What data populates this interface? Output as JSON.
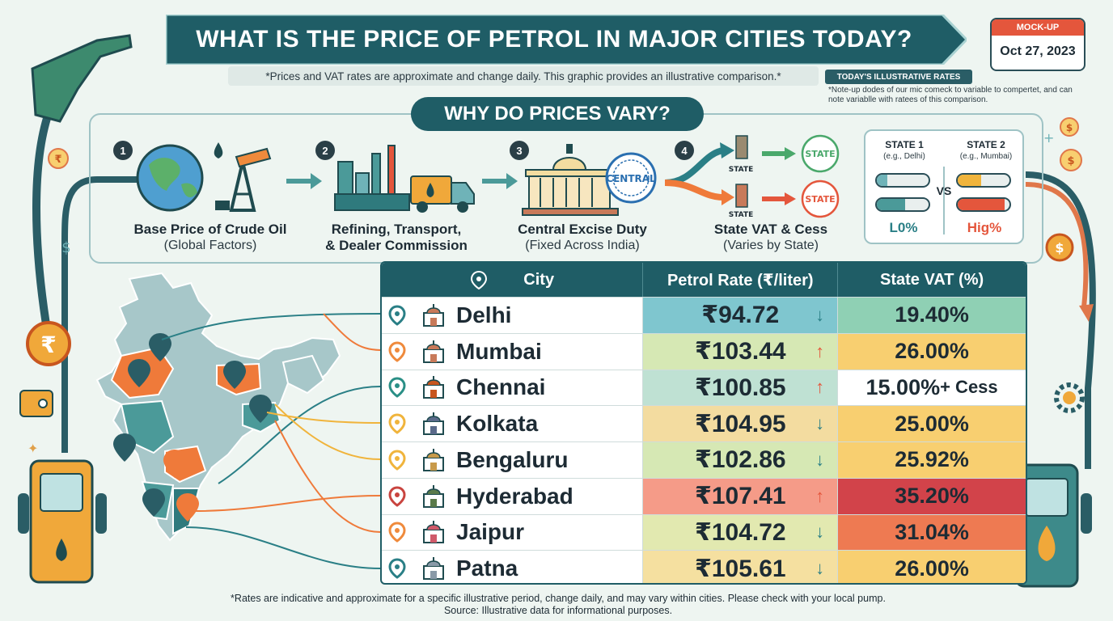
{
  "title": "WHAT IS THE PRICE OF PETROL IN MAJOR CITIES TODAY?",
  "subtitle": "*Prices and VAT rates are approximate and change daily. This graphic provides an illustrative comparison.*",
  "date_card": {
    "label": "MOCK-UP",
    "date": "Oct 27, 2023"
  },
  "rates_badge": "TODAY'S ILLUSTRATIVE RATES",
  "date_note": "*Note-up dodes of our mic comeck to variable to compertet, and can note variablle with ratees of this comparison.",
  "why": {
    "heading": "WHY DO PRICES VARY?",
    "steps": [
      {
        "num": "1",
        "title": "Base Price of Crude Oil",
        "sub": "(Global Factors)"
      },
      {
        "num": "2",
        "title": "Refining, Transport,",
        "title2": "& Dealer Commission"
      },
      {
        "num": "3",
        "title": "Central Excise Duty",
        "sub": "(Fixed Across India)"
      },
      {
        "num": "4",
        "title": "State VAT & Cess",
        "sub": "(Varies by State)"
      }
    ],
    "stamp_central": "CENTRAL",
    "stamp_state": "STATE",
    "state_label": "STATE",
    "compare": {
      "state1": "STATE 1",
      "state1_eg": "(e.g., Delhi)",
      "state2": "STATE 2",
      "state2_eg": "(e.g., Mumbai)",
      "vs": "VS",
      "low": "L0%",
      "high": "Hig%",
      "low_fill": 0.55,
      "high_fill": 0.9
    }
  },
  "table": {
    "headers": {
      "city": "City",
      "rate": "Petrol Rate (₹/liter)",
      "vat": "State VAT (%)"
    },
    "rows": [
      {
        "city": "Delhi",
        "rate": "₹94.72",
        "trend": "down",
        "vat": "19.40%",
        "rate_bg": "#7fc6cf",
        "vat_bg": "#8fd0b4",
        "pin": "#2a7f86"
      },
      {
        "city": "Mumbai",
        "rate": "₹103.44",
        "trend": "up",
        "vat": "26.00%",
        "rate_bg": "#d6e8b4",
        "vat_bg": "#f8cf70",
        "pin": "#ef8a3c"
      },
      {
        "city": "Chennai",
        "rate": "₹100.85",
        "trend": "up",
        "vat": "15.00%",
        "vat_suffix": " + Cess",
        "rate_bg": "#bfe1d3",
        "vat_bg": "#ffffff",
        "pin": "#2a8f86"
      },
      {
        "city": "Kolkata",
        "rate": "₹104.95",
        "trend": "down",
        "vat": "25.00%",
        "rate_bg": "#f3dca0",
        "vat_bg": "#f8cf70",
        "pin": "#f0b43c"
      },
      {
        "city": "Bengaluru",
        "rate": "₹102.86",
        "trend": "down",
        "vat": "25.92%",
        "rate_bg": "#d6e8b4",
        "vat_bg": "#f8cf70",
        "pin": "#f0b43c"
      },
      {
        "city": "Hyderabad",
        "rate": "₹107.41",
        "trend": "up",
        "vat": "35.20%",
        "rate_bg": "#f59b88",
        "vat_bg": "#d2434a",
        "pin": "#c9443f"
      },
      {
        "city": "Jaipur",
        "rate": "₹104.72",
        "trend": "down",
        "vat": "31.04%",
        "rate_bg": "#e2e9b0",
        "vat_bg": "#ee7a52",
        "pin": "#ef8a3c"
      },
      {
        "city": "Patna",
        "rate": "₹105.61",
        "trend": "down",
        "vat": "26.00%",
        "rate_bg": "#f5e0a0",
        "vat_bg": "#f8cf70",
        "pin": "#2a7f86"
      }
    ]
  },
  "footnote": "*Rates are indicative and approximate for a specific illustrative period, change daily, and may vary within cities. Please check with your local pump.",
  "source": "Source: Illustrative data for informational purposes.",
  "colors": {
    "teal_dark": "#1f5d66",
    "orange": "#ef7a3a",
    "green": "#4aa86b",
    "red": "#e4563c"
  }
}
